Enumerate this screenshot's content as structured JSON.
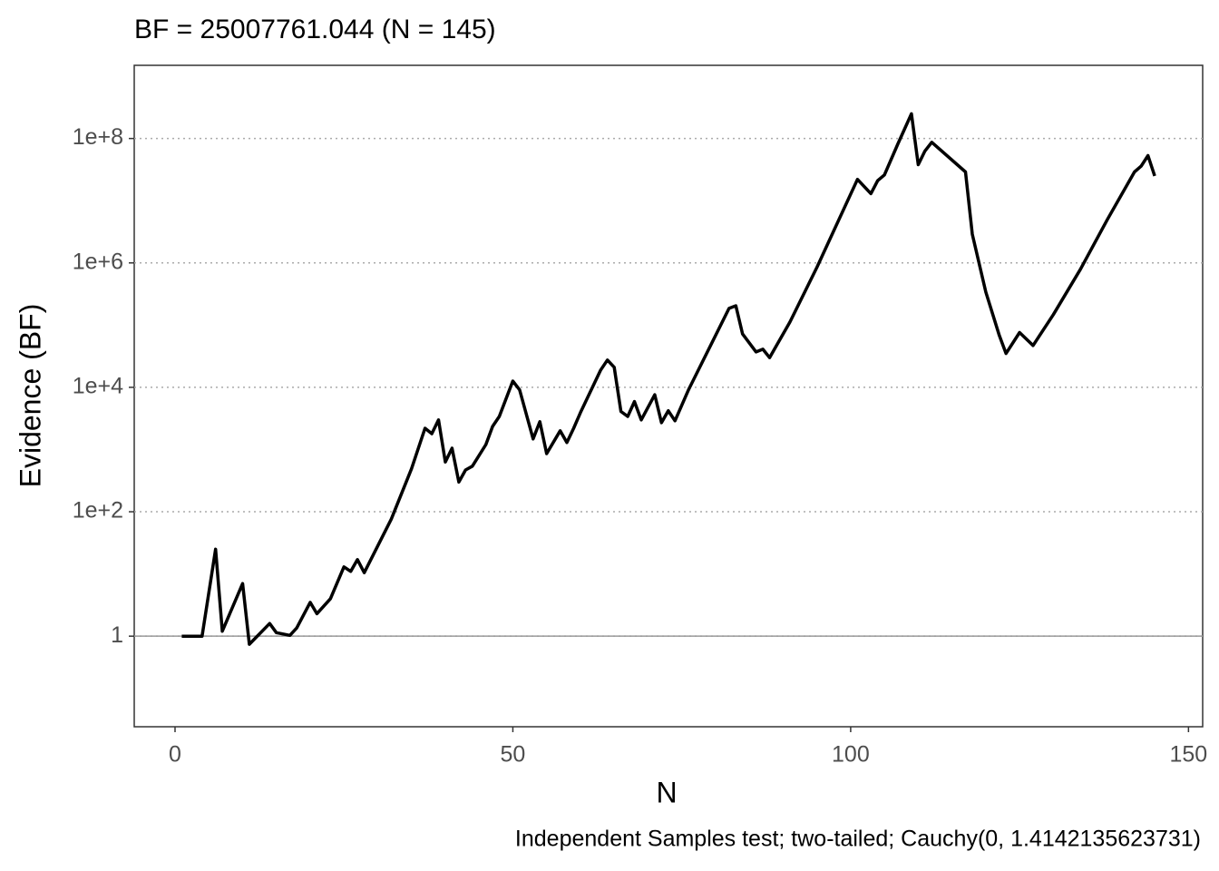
{
  "chart_data": {
    "type": "line",
    "title": "BF = 25007761.044 (N = 145)",
    "x_label": "N",
    "y_label": "Evidence (BF)",
    "caption": "Independent Samples test; two-tailed; Cauchy(0, 1.4142135623731)",
    "color": "#000000",
    "log_y": true,
    "grid": true,
    "hline": 1,
    "x": [
      1,
      4,
      6,
      7,
      10,
      11,
      14,
      15,
      17,
      18,
      20,
      21,
      23,
      25,
      26,
      27,
      28,
      32,
      35,
      37,
      38,
      39,
      40,
      41,
      42,
      43,
      44,
      46,
      47,
      48,
      50,
      51,
      53,
      54,
      55,
      57,
      58,
      59,
      60,
      63,
      64,
      65,
      66,
      67,
      68,
      69,
      71,
      72,
      73,
      74,
      76,
      82,
      83,
      84,
      86,
      87,
      88,
      91,
      95,
      101,
      103,
      104,
      105,
      107,
      109,
      110,
      111,
      112,
      117,
      118,
      120,
      122,
      123,
      125,
      127,
      130,
      134,
      138,
      142,
      143,
      144,
      145
    ],
    "values": [
      1,
      1,
      25,
      1.2,
      7,
      0.74,
      1.6,
      1.14,
      1.03,
      1.35,
      3.5,
      2.3,
      4,
      13,
      11,
      17,
      10.5,
      76,
      490,
      2200,
      1800,
      3000,
      630,
      1050,
      300,
      470,
      540,
      1200,
      2350,
      3400,
      12600,
      9100,
      1480,
      2800,
      860,
      2000,
      1300,
      2200,
      3900,
      19000,
      27500,
      21000,
      4100,
      3400,
      5900,
      3000,
      7600,
      2700,
      4200,
      2900,
      9100,
      186000,
      205000,
      72000,
      37000,
      41000,
      30000,
      112000,
      850000,
      22000000,
      13000000,
      21000000,
      26000000,
      82000000,
      250000000,
      38000000,
      63000000,
      87000000,
      29000000,
      2900000,
      340000,
      68000,
      35000,
      76000,
      47000,
      148000,
      790000,
      5000000,
      29000000,
      36000000,
      53000000,
      25007761.044
    ],
    "xlim": [
      -6.04,
      152.1
    ],
    "ylim": [
      0.035,
      1500000000
    ],
    "xticks": [
      0,
      50,
      100,
      150
    ],
    "yticks": [
      1,
      {
        "value": 100,
        "label": "1e+2"
      },
      {
        "value": 10000,
        "label": "1e+4"
      },
      {
        "value": 1000000,
        "label": "1e+6"
      },
      {
        "value": 100000000,
        "label": "1e+8"
      }
    ]
  }
}
